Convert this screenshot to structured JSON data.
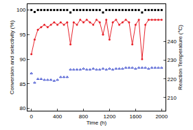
{
  "chart_data": {
    "type": "scatter",
    "x_label": "Time (h)",
    "y_label": "Conversion and selectivity (%)",
    "y2_label": "Reaction Temperature (°C)",
    "xlim": [
      -60,
      2060
    ],
    "xticks": [
      0,
      400,
      800,
      1200,
      1600,
      2000
    ],
    "ylim": [
      79.5,
      101.2
    ],
    "yticks": [
      80,
      85,
      90,
      95,
      100
    ],
    "y2lim": [
      203,
      260
    ],
    "y2ticks": [
      210,
      220,
      230,
      240
    ],
    "grid": false,
    "series": [
      {
        "type": "scatter",
        "color": "#000000",
        "marker": "square",
        "axis": "y",
        "x": [
          0,
          50,
          100,
          150,
          200,
          250,
          300,
          350,
          400,
          450,
          500,
          550,
          600,
          650,
          700,
          750,
          800,
          850,
          900,
          950,
          1000,
          1050,
          1100,
          1150,
          1200,
          1250,
          1300,
          1350,
          1400,
          1450,
          1500,
          1550,
          1600,
          1650,
          1700,
          1750,
          1800,
          1850,
          1900,
          1950,
          2000
        ],
        "values": [
          100,
          99.6,
          100,
          100,
          100,
          100,
          100,
          100,
          100,
          100,
          100,
          100,
          99.5,
          100,
          100,
          100,
          100,
          100,
          100,
          100,
          100,
          100,
          99.5,
          100,
          100,
          100,
          100,
          100,
          100,
          100,
          100,
          100,
          100,
          100,
          99.5,
          100,
          100,
          100,
          100,
          100,
          100
        ]
      },
      {
        "type": "line",
        "color": "#e8222a",
        "marker": "circle",
        "axis": "y",
        "x": [
          0,
          50,
          100,
          150,
          200,
          250,
          300,
          350,
          400,
          450,
          500,
          550,
          600,
          650,
          700,
          750,
          800,
          850,
          900,
          950,
          1000,
          1050,
          1100,
          1150,
          1200,
          1250,
          1300,
          1350,
          1400,
          1450,
          1500,
          1550,
          1600,
          1650,
          1700,
          1750,
          1800,
          1850,
          1900,
          1950,
          2000
        ],
        "values": [
          91,
          94,
          96,
          96.5,
          97,
          96.5,
          97,
          97.5,
          97,
          97.5,
          97,
          97.5,
          93,
          97.5,
          97,
          98,
          97.5,
          98,
          97.5,
          97,
          98,
          97.5,
          95,
          98,
          94,
          97.5,
          98,
          97,
          97.5,
          98,
          97.5,
          93,
          97,
          98,
          90,
          97,
          98,
          98,
          98,
          98,
          98
        ]
      },
      {
        "type": "scatter",
        "color": "#3344cc",
        "marker": "triangle-up",
        "axis": "y2",
        "x": [
          0,
          50,
          100,
          150,
          200,
          250,
          300,
          350,
          400,
          450,
          500,
          550,
          600,
          650,
          700,
          750,
          800,
          850,
          900,
          950,
          1000,
          1050,
          1100,
          1150,
          1200,
          1250,
          1300,
          1350,
          1400,
          1450,
          1500,
          1550,
          1600,
          1650,
          1700,
          1750,
          1800,
          1850,
          1900,
          1950,
          2000
        ],
        "values": [
          223,
          218,
          220,
          220,
          219.5,
          219.5,
          219.5,
          219,
          219.5,
          221,
          221,
          221,
          225,
          225,
          225,
          225,
          225.5,
          225,
          225,
          225.5,
          225,
          225,
          225.5,
          225,
          225.5,
          225,
          225.5,
          225.5,
          225.5,
          226,
          226,
          226,
          225.5,
          226,
          226,
          226,
          225.5,
          226,
          226,
          226,
          226
        ]
      }
    ]
  }
}
